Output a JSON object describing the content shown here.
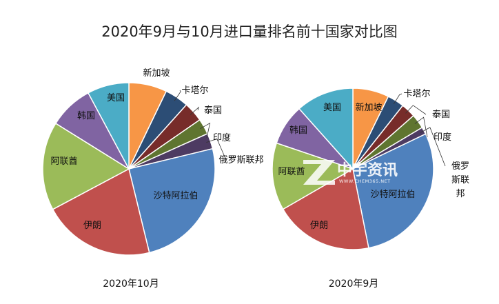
{
  "chart_data": {
    "title": "2020年9月与10月进口量排名前十国家对比图",
    "type": "pie",
    "pies": [
      {
        "name": "2020年10月",
        "slices": [
          {
            "label": "沙特阿拉伯",
            "value": 25.5,
            "color": "#4f81bd"
          },
          {
            "label": "伊朗",
            "value": 21.5,
            "color": "#c0504d"
          },
          {
            "label": "阿联酋",
            "value": 17.0,
            "color": "#9bbb59"
          },
          {
            "label": "韩国",
            "value": 8.5,
            "color": "#8064a2"
          },
          {
            "label": "美国",
            "value": 8.0,
            "color": "#4bacc6"
          },
          {
            "label": "新加坡",
            "value": 7.3,
            "color": "#f79646"
          },
          {
            "label": "卡塔尔",
            "value": 4.6,
            "color": "#2c4d75"
          },
          {
            "label": "泰国",
            "value": 3.8,
            "color": "#772c2a"
          },
          {
            "label": "印度",
            "value": 3.0,
            "color": "#5f7530"
          },
          {
            "label": "俄罗斯联邦",
            "value": 3.0,
            "color": "#4d3b62"
          }
        ]
      },
      {
        "name": "2020年9月",
        "slices": [
          {
            "label": "沙特阿拉伯",
            "value": 30.0,
            "color": "#4f81bd"
          },
          {
            "label": "伊朗",
            "value": 20.5,
            "color": "#c0504d"
          },
          {
            "label": "阿联酋",
            "value": 14.0,
            "color": "#9bbb59"
          },
          {
            "label": "韩国",
            "value": 8.5,
            "color": "#8064a2"
          },
          {
            "label": "美国",
            "value": 12.0,
            "color": "#4bacc6"
          },
          {
            "label": "新加坡",
            "value": 7.5,
            "color": "#f79646"
          },
          {
            "label": "卡塔尔",
            "value": 3.5,
            "color": "#2c4d75"
          },
          {
            "label": "泰国",
            "value": 3.0,
            "color": "#772c2a"
          },
          {
            "label": "印度",
            "value": 3.0,
            "color": "#5f7530"
          },
          {
            "label": "俄罗斯联邦",
            "value": 1.5,
            "color": "#4d3b62"
          }
        ]
      }
    ]
  },
  "watermark": {
    "logo_text": "中宇资讯",
    "url_text": "WWW.CHEM365.NET"
  }
}
